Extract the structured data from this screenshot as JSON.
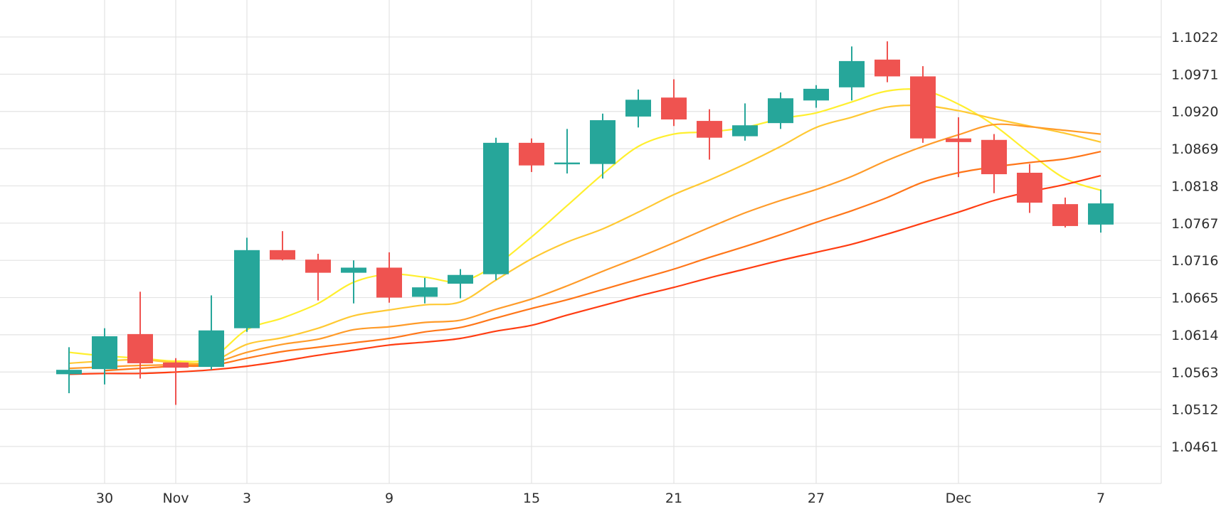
{
  "chart_data": {
    "type": "candlestick",
    "title": "",
    "xlabel": "",
    "ylabel": "",
    "x_ticks": [
      {
        "label": "30",
        "bar": 1
      },
      {
        "label": "Nov",
        "bar": 3
      },
      {
        "label": "3",
        "bar": 5
      },
      {
        "label": "9",
        "bar": 9
      },
      {
        "label": "15",
        "bar": 13
      },
      {
        "label": "21",
        "bar": 17
      },
      {
        "label": "27",
        "bar": 21
      },
      {
        "label": "Dec",
        "bar": 25
      },
      {
        "label": "7",
        "bar": 29
      }
    ],
    "y_ticks": [
      "1.1022",
      "1.0971",
      "1.0920",
      "1.0869",
      "1.0818",
      "1.0767",
      "1.0716",
      "1.0665",
      "1.0614",
      "1.0563",
      "1.0512",
      "1.0461"
    ],
    "ylim": [
      1.041,
      1.1073
    ],
    "grid": true,
    "colors": {
      "up": "#26a69a",
      "down": "#ef5350",
      "grid": "#e3e3e3",
      "axis_text": "#2e2e2e"
    },
    "candles": [
      {
        "o": 1.056,
        "h": 1.0597,
        "l": 1.0534,
        "c": 1.0566
      },
      {
        "o": 1.0567,
        "h": 1.0623,
        "l": 1.0546,
        "c": 1.0612
      },
      {
        "o": 1.0615,
        "h": 1.0673,
        "l": 1.0554,
        "c": 1.0575
      },
      {
        "o": 1.0576,
        "h": 1.0582,
        "l": 1.0518,
        "c": 1.0569
      },
      {
        "o": 1.057,
        "h": 1.0668,
        "l": 1.0566,
        "c": 1.062
      },
      {
        "o": 1.0623,
        "h": 1.0747,
        "l": 1.0618,
        "c": 1.073
      },
      {
        "o": 1.073,
        "h": 1.0756,
        "l": 1.0716,
        "c": 1.0717
      },
      {
        "o": 1.0717,
        "h": 1.0725,
        "l": 1.0661,
        "c": 1.0699
      },
      {
        "o": 1.0699,
        "h": 1.0716,
        "l": 1.0657,
        "c": 1.0706
      },
      {
        "o": 1.0706,
        "h": 1.0727,
        "l": 1.0658,
        "c": 1.0665
      },
      {
        "o": 1.0666,
        "h": 1.0692,
        "l": 1.0657,
        "c": 1.0679
      },
      {
        "o": 1.0684,
        "h": 1.0704,
        "l": 1.0664,
        "c": 1.0696
      },
      {
        "o": 1.0697,
        "h": 1.0884,
        "l": 1.0689,
        "c": 1.0877
      },
      {
        "o": 1.0877,
        "h": 1.0883,
        "l": 1.0837,
        "c": 1.0846
      },
      {
        "o": 1.0848,
        "h": 1.0896,
        "l": 1.0835,
        "c": 1.085
      },
      {
        "o": 1.0848,
        "h": 1.0917,
        "l": 1.0828,
        "c": 1.0908
      },
      {
        "o": 1.0913,
        "h": 1.095,
        "l": 1.0898,
        "c": 1.0936
      },
      {
        "o": 1.0939,
        "h": 1.0964,
        "l": 1.09,
        "c": 1.0909
      },
      {
        "o": 1.0907,
        "h": 1.0923,
        "l": 1.0854,
        "c": 1.0884
      },
      {
        "o": 1.0886,
        "h": 1.0931,
        "l": 1.088,
        "c": 1.0901
      },
      {
        "o": 1.0904,
        "h": 1.0946,
        "l": 1.0896,
        "c": 1.0938
      },
      {
        "o": 1.0935,
        "h": 1.0956,
        "l": 1.0925,
        "c": 1.0951
      },
      {
        "o": 1.0953,
        "h": 1.1009,
        "l": 1.0935,
        "c": 1.0989
      },
      {
        "o": 1.0991,
        "h": 1.1016,
        "l": 1.096,
        "c": 1.0968
      },
      {
        "o": 1.0968,
        "h": 1.0982,
        "l": 1.0877,
        "c": 1.0883
      },
      {
        "o": 1.0883,
        "h": 1.0912,
        "l": 1.083,
        "c": 1.0878
      },
      {
        "o": 1.0881,
        "h": 1.0889,
        "l": 1.0808,
        "c": 1.0834
      },
      {
        "o": 1.0836,
        "h": 1.0848,
        "l": 1.0781,
        "c": 1.0795
      },
      {
        "o": 1.0793,
        "h": 1.0802,
        "l": 1.0761,
        "c": 1.0763
      },
      {
        "o": 1.0765,
        "h": 1.0813,
        "l": 1.0754,
        "c": 1.0794
      }
    ],
    "moving_averages": [
      {
        "color": "#ffef2e",
        "start": 0,
        "values": [
          1.059,
          1.0585,
          1.0582,
          1.0578,
          1.0582,
          1.0621,
          1.0637,
          1.0657,
          1.0686,
          1.0697,
          1.0693,
          1.0687,
          1.071,
          1.0748,
          1.0791,
          1.0834,
          1.0872,
          1.0889,
          1.0892,
          1.0898,
          1.091,
          1.0918,
          1.0933,
          1.0948,
          1.0949,
          1.093,
          1.0901,
          1.0863,
          1.0828,
          1.0812
        ]
      },
      {
        "color": "#ffc933",
        "start": 0,
        "values": [
          1.0575,
          1.0578,
          1.058,
          1.0576,
          1.0577,
          1.0601,
          1.061,
          1.0623,
          1.064,
          1.0648,
          1.0655,
          1.0659,
          1.0689,
          1.0718,
          1.0741,
          1.0759,
          1.0782,
          1.0806,
          1.0826,
          1.0848,
          1.0872,
          1.0898,
          1.0912,
          1.0926,
          1.0928,
          1.0921,
          1.091,
          1.09,
          1.089,
          1.0878
        ]
      },
      {
        "color": "#ff9b29",
        "start": 0,
        "values": [
          1.0568,
          1.057,
          1.0572,
          1.0573,
          1.0575,
          1.059,
          1.0601,
          1.0608,
          1.0621,
          1.0625,
          1.0631,
          1.0634,
          1.0649,
          1.0663,
          1.0681,
          1.0701,
          1.072,
          1.074,
          1.0761,
          1.0781,
          1.0798,
          1.0813,
          1.0831,
          1.0853,
          1.0872,
          1.0888,
          1.0902,
          1.0899,
          1.0894,
          1.0889
        ]
      },
      {
        "color": "#ff7619",
        "start": 1,
        "values": [
          1.0565,
          1.0568,
          1.0571,
          1.0572,
          1.0582,
          1.0591,
          1.0597,
          1.0603,
          1.0609,
          1.0618,
          1.0624,
          1.0637,
          1.065,
          1.0662,
          1.0676,
          1.069,
          1.0704,
          1.072,
          1.0735,
          1.0751,
          1.0768,
          1.0784,
          1.0802,
          1.0823,
          1.0836,
          1.0844,
          1.085,
          1.0855,
          1.0865
        ]
      },
      {
        "color": "#ff3d12",
        "start": 0,
        "values": [
          1.056,
          1.0561,
          1.0561,
          1.0563,
          1.0566,
          1.0571,
          1.0578,
          1.0586,
          1.0593,
          1.06,
          1.0604,
          1.0609,
          1.0619,
          1.0627,
          1.0641,
          1.0654,
          1.0667,
          1.0679,
          1.0692,
          1.0704,
          1.0716,
          1.0727,
          1.0738,
          1.0752,
          1.0767,
          1.0782,
          1.0798,
          1.081,
          1.082,
          1.0832
        ]
      }
    ]
  }
}
